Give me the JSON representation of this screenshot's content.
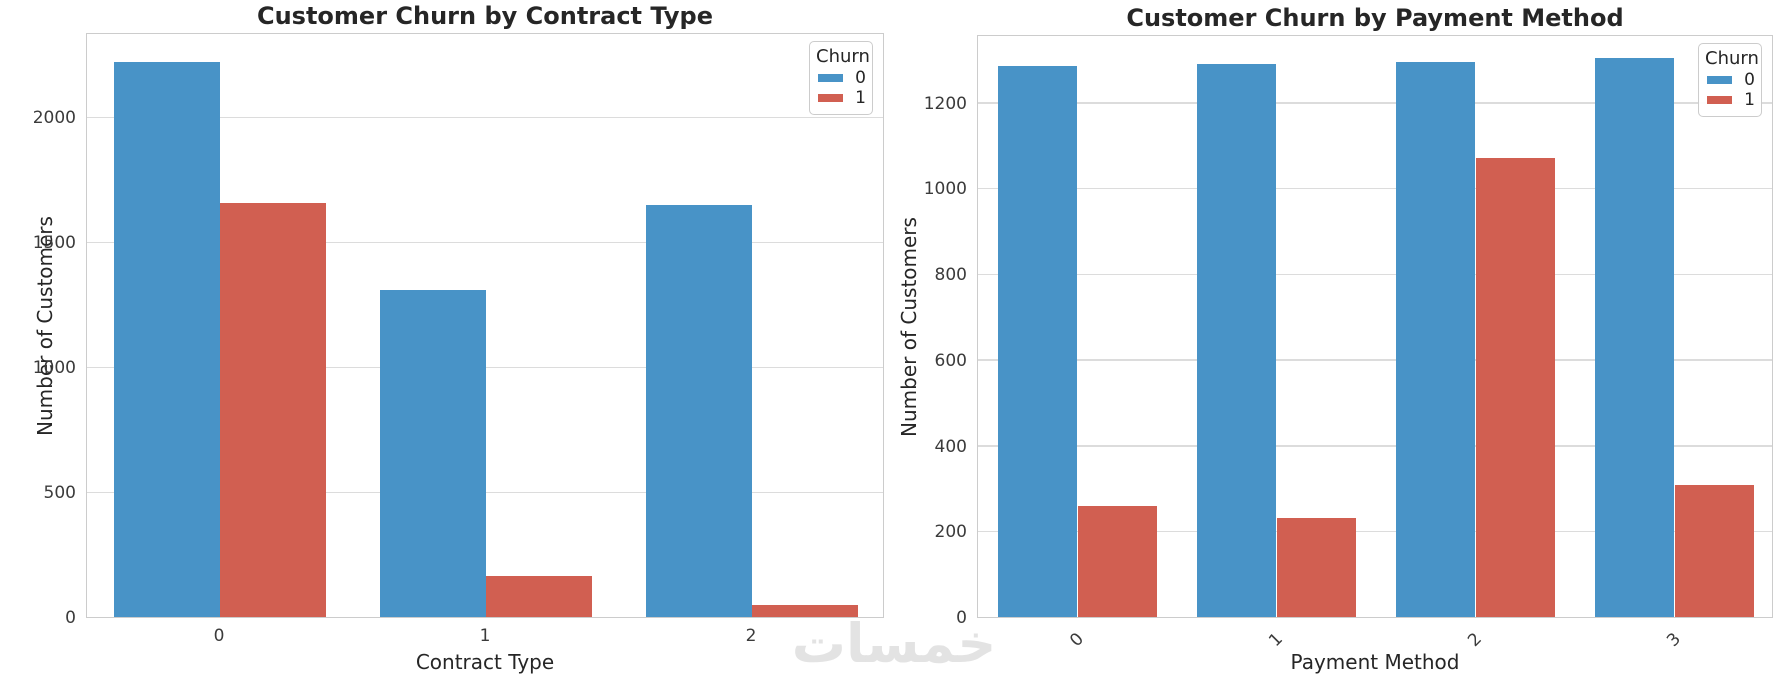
{
  "figure": {
    "background": "#ffffff"
  },
  "colors": {
    "churn_0": "#4893C7",
    "churn_1": "#D15F51",
    "grid": "#dcdcdc",
    "spine": "#cccccc",
    "title_text": "#262626",
    "tick_text": "#3b3b3b",
    "watermark": "#e3e3e3"
  },
  "legend": {
    "title": "Churn",
    "entries": [
      {
        "label": "0",
        "color_key": "churn_0"
      },
      {
        "label": "1",
        "color_key": "churn_1"
      }
    ]
  },
  "watermark": {
    "text": "خمسات"
  },
  "chart_data": [
    {
      "type": "bar",
      "title": "Customer Churn by Contract Type",
      "xlabel": "Contract Type",
      "ylabel": "Number of Customers",
      "categories": [
        "0",
        "1",
        "2"
      ],
      "series": [
        {
          "name": "0",
          "values": [
            2220,
            1307,
            1647
          ]
        },
        {
          "name": "1",
          "values": [
            1655,
            166,
            48
          ]
        }
      ],
      "ylim": [
        0,
        2340
      ],
      "yticks": [
        0,
        500,
        1000,
        1500,
        2000
      ],
      "grid": true,
      "legend_position": "upper right",
      "xtick_rotation": 0
    },
    {
      "type": "bar",
      "title": "Customer Churn by Payment Method",
      "xlabel": "Payment Method",
      "ylabel": "Number of Customers",
      "categories": [
        "0",
        "1",
        "2",
        "3"
      ],
      "series": [
        {
          "name": "0",
          "values": [
            1286,
            1290,
            1294,
            1304
          ]
        },
        {
          "name": "1",
          "values": [
            258,
            232,
            1071,
            308
          ]
        }
      ],
      "ylim": [
        0,
        1360
      ],
      "yticks": [
        0,
        200,
        400,
        600,
        800,
        1000,
        1200
      ],
      "grid": true,
      "legend_position": "upper right",
      "xtick_rotation": 45
    }
  ]
}
